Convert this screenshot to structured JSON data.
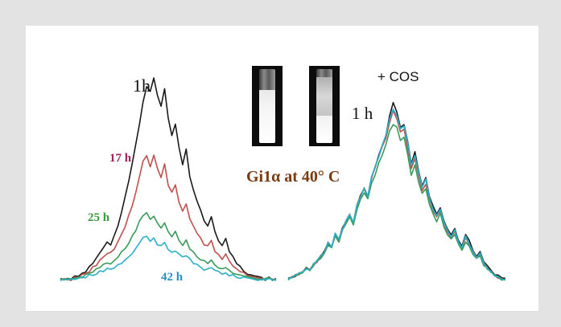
{
  "labels": {
    "left_1h": "1h",
    "left_17h": "17 h",
    "left_25h": "25 h",
    "left_42h": "42 h",
    "right_cos": "+ COS",
    "right_1h": "1 h",
    "sample": "Gi1α at 40° C"
  },
  "colors": {
    "frame": "#e3e3e3",
    "h1": "#1a1a1a",
    "h17": "#c0504d",
    "h25": "#3a9a5a",
    "h42": "#2ab0c8",
    "label_17h": "#a0205c",
    "label_25h": "#3a9a3a",
    "label_42h": "#2a8fc8",
    "label_sample": "#7a3a10"
  },
  "chart_data": [
    {
      "type": "line",
      "title": "",
      "xlabel": "",
      "ylabel": "",
      "grid": false,
      "legend": "inline labels",
      "x": [
        0,
        1,
        2,
        3,
        4,
        5,
        6,
        7,
        8,
        9,
        10,
        11,
        12,
        13,
        14,
        15,
        16,
        17,
        18,
        19,
        20,
        21,
        22,
        23,
        24,
        25,
        26,
        27,
        28,
        29,
        30,
        31,
        32,
        33,
        34,
        35,
        36,
        37,
        38,
        39,
        40,
        41,
        42,
        43,
        44,
        45,
        46,
        47,
        48,
        49,
        50,
        51,
        52,
        53,
        54,
        55,
        56,
        57,
        58,
        59,
        60
      ],
      "series": [
        {
          "name": "1h",
          "color": "#1a1a1a",
          "values": [
            2,
            2,
            3,
            2,
            4,
            3,
            5,
            6,
            8,
            10,
            12,
            15,
            18,
            20,
            19,
            23,
            28,
            35,
            42,
            50,
            58,
            68,
            78,
            88,
            96,
            93,
            100,
            92,
            86,
            95,
            80,
            72,
            78,
            66,
            58,
            65,
            52,
            46,
            40,
            36,
            30,
            28,
            33,
            25,
            21,
            18,
            22,
            16,
            13,
            10,
            8,
            6,
            5,
            4,
            4,
            3,
            3,
            2,
            3,
            2,
            2
          ]
        },
        {
          "name": "17 h",
          "color": "#c0504d",
          "values": [
            2,
            2,
            2,
            2,
            3,
            3,
            4,
            5,
            6,
            8,
            9,
            11,
            13,
            15,
            15,
            17,
            20,
            24,
            28,
            33,
            38,
            44,
            52,
            60,
            62,
            57,
            62,
            56,
            52,
            58,
            48,
            44,
            48,
            40,
            35,
            39,
            31,
            28,
            25,
            22,
            19,
            18,
            21,
            16,
            14,
            12,
            14,
            11,
            9,
            7,
            6,
            5,
            4,
            4,
            3,
            3,
            2,
            2,
            3,
            2,
            2
          ]
        },
        {
          "name": "25 h",
          "color": "#3a9a5a",
          "values": [
            2,
            2,
            2,
            2,
            3,
            3,
            3,
            4,
            5,
            6,
            7,
            8,
            9,
            10,
            10,
            11,
            13,
            15,
            17,
            20,
            23,
            26,
            30,
            33,
            35,
            31,
            33,
            29,
            27,
            30,
            25,
            23,
            25,
            21,
            19,
            21,
            17,
            15,
            13,
            12,
            11,
            10,
            11,
            9,
            8,
            7,
            8,
            6,
            5,
            5,
            4,
            4,
            3,
            3,
            3,
            2,
            2,
            2,
            3,
            2,
            2
          ]
        },
        {
          "name": "42 h",
          "color": "#2ab0c8",
          "values": [
            2,
            2,
            2,
            2,
            2,
            3,
            3,
            3,
            4,
            4,
            5,
            6,
            6,
            7,
            7,
            8,
            9,
            10,
            11,
            13,
            15,
            17,
            20,
            22,
            23,
            21,
            22,
            19,
            18,
            20,
            17,
            15,
            16,
            14,
            13,
            14,
            12,
            10,
            9,
            8,
            7,
            7,
            8,
            6,
            6,
            5,
            5,
            4,
            4,
            3,
            3,
            3,
            3,
            2,
            2,
            2,
            2,
            2,
            2,
            2,
            2
          ]
        }
      ]
    },
    {
      "type": "line",
      "title": "",
      "xlabel": "",
      "ylabel": "",
      "grid": false,
      "legend": "none",
      "x": [
        0,
        1,
        2,
        3,
        4,
        5,
        6,
        7,
        8,
        9,
        10,
        11,
        12,
        13,
        14,
        15,
        16,
        17,
        18,
        19,
        20,
        21,
        22,
        23,
        24,
        25,
        26,
        27,
        28,
        29,
        30,
        31,
        32,
        33,
        34,
        35,
        36,
        37,
        38,
        39,
        40,
        41,
        42,
        43,
        44,
        45,
        46,
        47,
        48,
        49,
        50,
        51,
        52,
        53,
        54,
        55,
        56,
        57,
        58,
        59,
        60
      ],
      "series": [
        {
          "name": "1h",
          "color": "#1a1a1a",
          "values": [
            2,
            3,
            4,
            5,
            6,
            8,
            7,
            10,
            12,
            15,
            17,
            22,
            20,
            27,
            24,
            30,
            34,
            38,
            33,
            43,
            48,
            52,
            48,
            58,
            64,
            70,
            76,
            82,
            92,
            100,
            94,
            86,
            88,
            78,
            66,
            72,
            62,
            54,
            58,
            48,
            42,
            38,
            42,
            34,
            30,
            26,
            30,
            24,
            20,
            27,
            23,
            18,
            15,
            17,
            12,
            9,
            7,
            5,
            4,
            3,
            2
          ]
        },
        {
          "name": "17 h",
          "color": "#c0504d",
          "values": [
            2,
            3,
            4,
            5,
            6,
            8,
            7,
            10,
            12,
            15,
            17,
            22,
            20,
            27,
            24,
            30,
            34,
            38,
            33,
            43,
            48,
            52,
            48,
            58,
            64,
            70,
            75,
            80,
            89,
            95,
            91,
            83,
            85,
            75,
            63,
            69,
            59,
            51,
            55,
            46,
            40,
            36,
            40,
            32,
            28,
            25,
            28,
            22,
            19,
            25,
            21,
            17,
            14,
            16,
            11,
            8,
            6,
            4,
            3,
            2,
            2
          ]
        },
        {
          "name": "25 h",
          "color": "#3a9a5a",
          "values": [
            2,
            3,
            4,
            5,
            6,
            8,
            7,
            10,
            12,
            14,
            16,
            21,
            19,
            26,
            23,
            29,
            33,
            36,
            32,
            41,
            46,
            50,
            46,
            55,
            60,
            66,
            71,
            76,
            84,
            88,
            86,
            79,
            80,
            71,
            60,
            65,
            56,
            49,
            52,
            44,
            38,
            34,
            38,
            31,
            27,
            24,
            27,
            21,
            18,
            23,
            20,
            16,
            13,
            15,
            10,
            8,
            6,
            4,
            3,
            2,
            2
          ]
        },
        {
          "name": "42 h",
          "color": "#2ab0c8",
          "values": [
            2,
            3,
            4,
            5,
            6,
            8,
            7,
            10,
            12,
            15,
            17,
            22,
            20,
            27,
            24,
            30,
            34,
            38,
            33,
            43,
            48,
            52,
            48,
            58,
            64,
            70,
            76,
            82,
            90,
            96,
            93,
            85,
            87,
            77,
            65,
            71,
            61,
            53,
            57,
            47,
            41,
            37,
            41,
            33,
            29,
            26,
            29,
            23,
            19,
            26,
            22,
            17,
            14,
            16,
            11,
            8,
            6,
            4,
            3,
            2,
            2
          ]
        }
      ]
    }
  ]
}
